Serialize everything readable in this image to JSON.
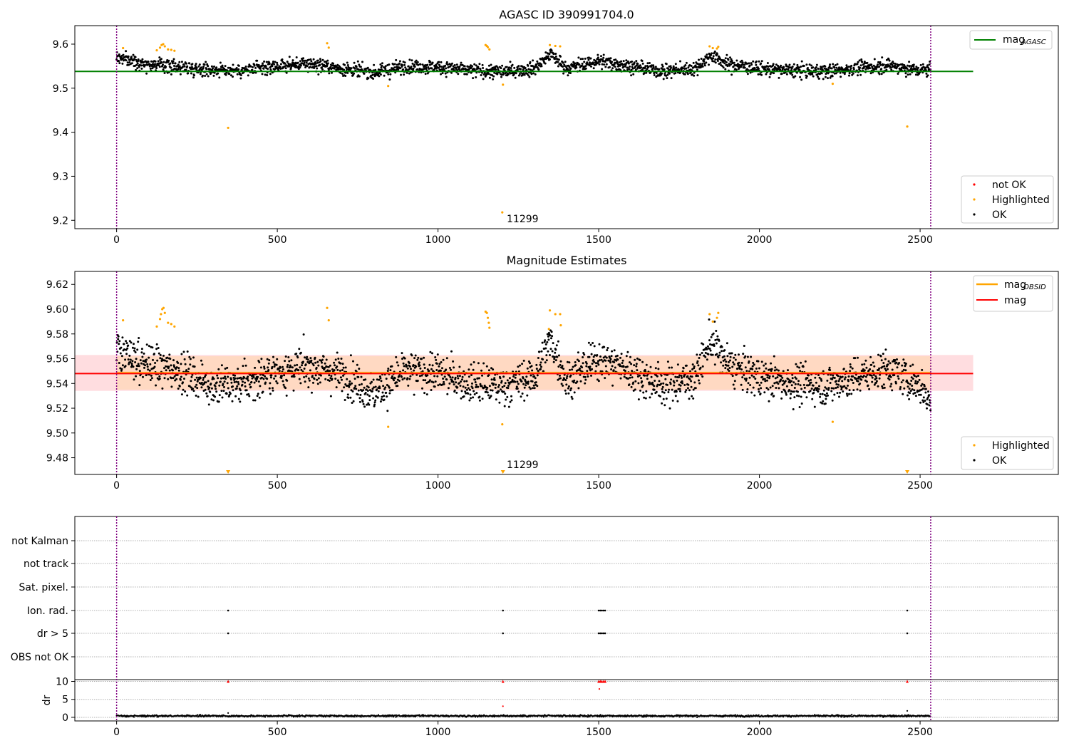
{
  "figure_titles": {
    "panel1": "AGASC ID 390991704.0",
    "panel2": "Magnitude Estimates"
  },
  "annotations": {
    "obsid_label": "11299"
  },
  "colors": {
    "ok": "#000000",
    "highlighted": "#ffa500",
    "not_ok": "#ff0000",
    "mag_agasc_line": "#008000",
    "mag_obsid_line": "#ffa500",
    "mag_line": "#ff0000",
    "obs_boundary": "#800080",
    "band_outer": "#ffdde0",
    "band_inner": "#ffd9c2"
  },
  "chart_data": [
    {
      "type": "scatter",
      "title": "AGASC ID 390991704.0",
      "xlim": [
        -130,
        2930
      ],
      "ylim": [
        9.181,
        9.642
      ],
      "xticks": [
        0,
        500,
        1000,
        1500,
        2000,
        2500
      ],
      "yticks": [
        9.2,
        9.3,
        9.4,
        9.5,
        9.6
      ],
      "ytick_labels": [
        "9.2",
        "9.3",
        "9.4",
        "9.5",
        "9.6"
      ],
      "obs_boundaries": [
        0,
        2533
      ],
      "mag_agasc": 9.538,
      "mag_agasc_xrange": [
        -130,
        2665
      ],
      "legend_lines": [
        {
          "name": "mag",
          "sub": "AGASC",
          "color": "#008000"
        }
      ],
      "legend_points": [
        {
          "name": "not OK",
          "color": "#ff0000"
        },
        {
          "name": "Highlighted",
          "color": "#ffa500"
        },
        {
          "name": "OK",
          "color": "#000000"
        }
      ],
      "legend_points_placement": "lower-right",
      "legend_lines_placement": "upper-right",
      "highlighted_points": [
        [
          20,
          9.591
        ],
        [
          125,
          9.586
        ],
        [
          135,
          9.592
        ],
        [
          140,
          9.598
        ],
        [
          145,
          9.6
        ],
        [
          150,
          9.595
        ],
        [
          160,
          9.588
        ],
        [
          170,
          9.587
        ],
        [
          180,
          9.585
        ],
        [
          347,
          9.41
        ],
        [
          655,
          9.602
        ],
        [
          660,
          9.592
        ],
        [
          845,
          9.505
        ],
        [
          1148,
          9.598
        ],
        [
          1152,
          9.596
        ],
        [
          1155,
          9.593
        ],
        [
          1160,
          9.588
        ],
        [
          1200,
          9.218
        ],
        [
          1202,
          9.508
        ],
        [
          1348,
          9.598
        ],
        [
          1365,
          9.596
        ],
        [
          1380,
          9.595
        ],
        [
          1845,
          9.595
        ],
        [
          1855,
          9.591
        ],
        [
          1868,
          9.59
        ],
        [
          1872,
          9.594
        ],
        [
          2228,
          9.51
        ],
        [
          2460,
          9.413
        ]
      ],
      "ok_band_segments": [
        [
          0,
          9.57
        ],
        [
          100,
          9.555
        ],
        [
          200,
          9.548
        ],
        [
          300,
          9.542
        ],
        [
          400,
          9.54
        ],
        [
          500,
          9.55
        ],
        [
          600,
          9.556
        ],
        [
          700,
          9.545
        ],
        [
          800,
          9.535
        ],
        [
          900,
          9.55
        ],
        [
          1000,
          9.548
        ],
        [
          1100,
          9.54
        ],
        [
          1200,
          9.537
        ],
        [
          1300,
          9.545
        ],
        [
          1350,
          9.578
        ],
        [
          1400,
          9.545
        ],
        [
          1500,
          9.562
        ],
        [
          1600,
          9.55
        ],
        [
          1700,
          9.538
        ],
        [
          1800,
          9.545
        ],
        [
          1850,
          9.575
        ],
        [
          1900,
          9.555
        ],
        [
          2000,
          9.545
        ],
        [
          2100,
          9.54
        ],
        [
          2200,
          9.538
        ],
        [
          2300,
          9.545
        ],
        [
          2400,
          9.552
        ],
        [
          2500,
          9.54
        ],
        [
          2533,
          9.545
        ]
      ],
      "annotation": {
        "text": "11299",
        "x": 1210,
        "y": 9.2
      }
    },
    {
      "type": "scatter",
      "title": "Magnitude Estimates",
      "xlim": [
        -130,
        2930
      ],
      "ylim": [
        9.4665,
        9.6305
      ],
      "xticks": [
        0,
        500,
        1000,
        1500,
        2000,
        2500
      ],
      "yticks": [
        9.48,
        9.5,
        9.52,
        9.54,
        9.56,
        9.58,
        9.6,
        9.62
      ],
      "ytick_labels": [
        "9.48",
        "9.50",
        "9.52",
        "9.54",
        "9.56",
        "9.58",
        "9.60",
        "9.62"
      ],
      "obs_boundaries": [
        0,
        2533
      ],
      "mag": 9.548,
      "mag_obsid": 9.549,
      "band_outer": [
        9.534,
        9.563
      ],
      "band_inner": [
        9.535,
        9.562
      ],
      "band_xrange": [
        -130,
        2665
      ],
      "legend_lines": [
        {
          "name": "mag",
          "sub": "OBSID",
          "color": "#ffa500"
        },
        {
          "name": "mag",
          "sub": "",
          "color": "#ff0000"
        }
      ],
      "legend_points": [
        {
          "name": "Highlighted",
          "color": "#ffa500"
        },
        {
          "name": "OK",
          "color": "#000000"
        }
      ],
      "legend_points_placement": "lower-right",
      "legend_lines_placement": "upper-right",
      "highlighted_points": [
        [
          20,
          9.591
        ],
        [
          125,
          9.586
        ],
        [
          135,
          9.592
        ],
        [
          138,
          9.596
        ],
        [
          142,
          9.6
        ],
        [
          146,
          9.601
        ],
        [
          150,
          9.597
        ],
        [
          160,
          9.589
        ],
        [
          170,
          9.588
        ],
        [
          180,
          9.586
        ],
        [
          655,
          9.601
        ],
        [
          660,
          9.591
        ],
        [
          845,
          9.505
        ],
        [
          1148,
          9.598
        ],
        [
          1152,
          9.597
        ],
        [
          1155,
          9.593
        ],
        [
          1158,
          9.589
        ],
        [
          1160,
          9.585
        ],
        [
          1200,
          9.507
        ],
        [
          1345,
          9.584
        ],
        [
          1348,
          9.599
        ],
        [
          1365,
          9.596
        ],
        [
          1380,
          9.596
        ],
        [
          1382,
          9.587
        ],
        [
          1845,
          9.596
        ],
        [
          1855,
          9.59
        ],
        [
          1868,
          9.593
        ],
        [
          1872,
          9.597
        ],
        [
          2228,
          9.509
        ]
      ],
      "offscale_markers": [
        [
          347,
          9.4665
        ],
        [
          1202,
          9.4665
        ],
        [
          2460,
          9.4665
        ]
      ],
      "ok_band_segments": [
        [
          0,
          9.565
        ],
        [
          100,
          9.555
        ],
        [
          200,
          9.55
        ],
        [
          300,
          9.538
        ],
        [
          400,
          9.54
        ],
        [
          500,
          9.55
        ],
        [
          600,
          9.553
        ],
        [
          700,
          9.548
        ],
        [
          800,
          9.532
        ],
        [
          900,
          9.55
        ],
        [
          1000,
          9.548
        ],
        [
          1100,
          9.54
        ],
        [
          1200,
          9.538
        ],
        [
          1300,
          9.545
        ],
        [
          1350,
          9.575
        ],
        [
          1400,
          9.542
        ],
        [
          1500,
          9.56
        ],
        [
          1600,
          9.55
        ],
        [
          1700,
          9.538
        ],
        [
          1800,
          9.545
        ],
        [
          1850,
          9.575
        ],
        [
          1900,
          9.555
        ],
        [
          2000,
          9.545
        ],
        [
          2100,
          9.54
        ],
        [
          2200,
          9.538
        ],
        [
          2300,
          9.545
        ],
        [
          2400,
          9.552
        ],
        [
          2500,
          9.538
        ],
        [
          2533,
          9.525
        ]
      ],
      "annotation": {
        "text": "11299",
        "x": 1210,
        "y": 9.473
      }
    },
    {
      "type": "scatter",
      "title": "",
      "xlim": [
        -130,
        2930
      ],
      "xticks": [
        0,
        500,
        1000,
        1500,
        2000,
        2500
      ],
      "flag_rows": [
        "not Kalman",
        "not track",
        "Sat. pixel.",
        "Ion. rad.",
        "dr > 5",
        "OBS not OK"
      ],
      "obs_boundaries": [
        0,
        2533
      ],
      "flag_points": {
        "Ion. rad.": [
          347,
          1202,
          1500,
          1505,
          1510,
          1515,
          1520,
          2460
        ],
        "dr > 5": [
          347,
          1202,
          1500,
          1505,
          1510,
          1515,
          1520,
          2460
        ]
      },
      "dr": {
        "ylabel": "dr",
        "ylim": [
          -1,
          10.5
        ],
        "yticks": [
          0,
          5,
          10
        ],
        "ytick_labels": [
          "0",
          "5",
          "10"
        ],
        "clipped_markers": [
          347,
          1202,
          1500,
          1505,
          1510,
          1515,
          1520,
          2460
        ],
        "outliers": [
          [
            1202,
            3.1
          ],
          [
            1502,
            7.9
          ],
          [
            2460,
            1.8
          ],
          [
            347,
            1.2
          ]
        ],
        "baseline": 0.4
      }
    }
  ]
}
